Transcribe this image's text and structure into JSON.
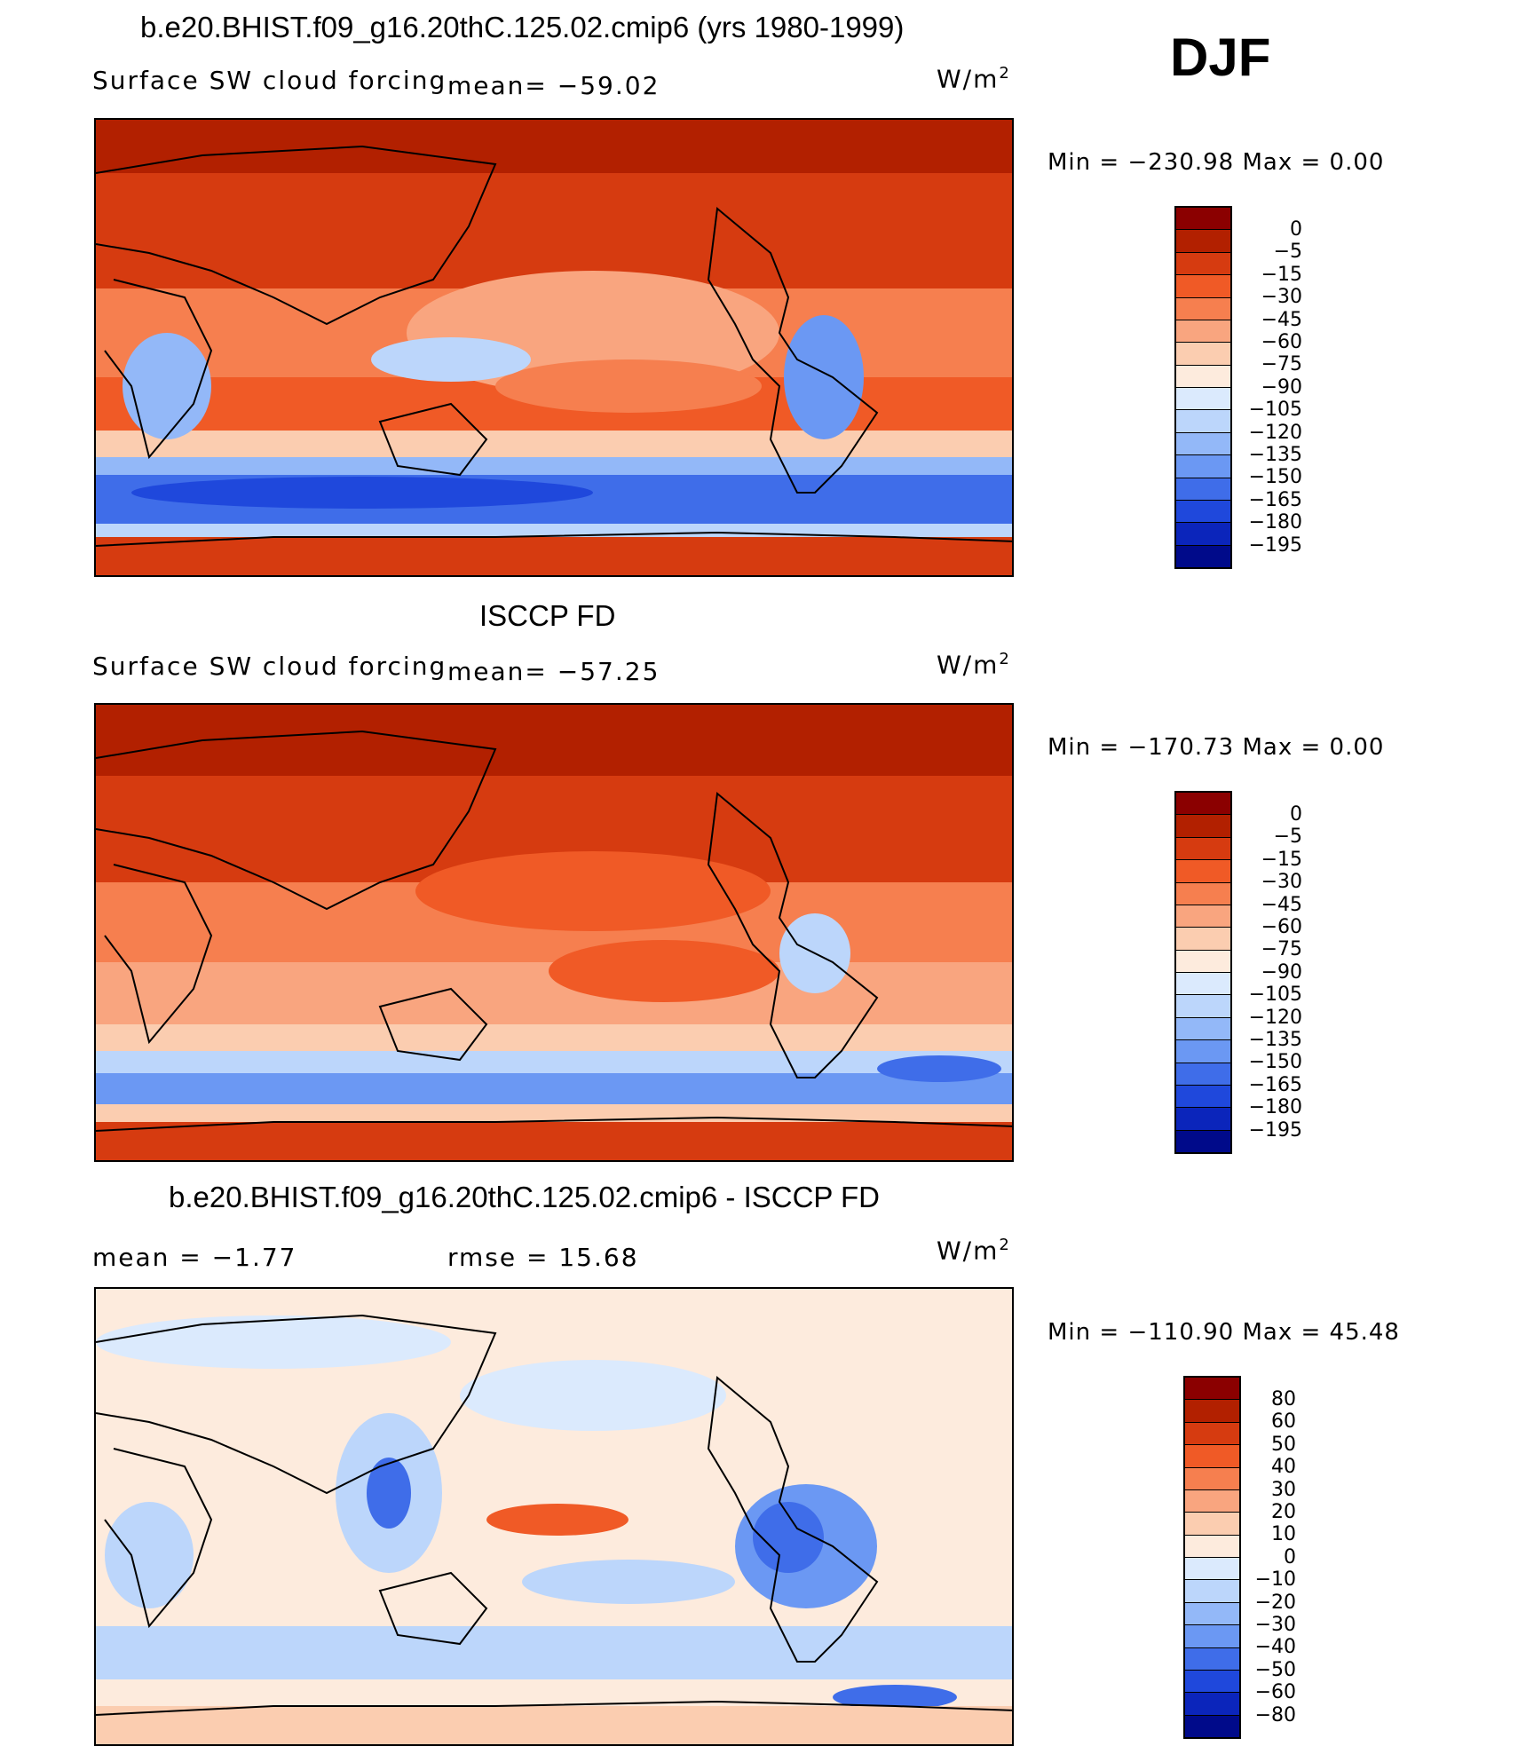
{
  "season": "DJF",
  "panels": [
    {
      "title": "b.e20.BHIST.f09_g16.20thC.125.02.cmip6 (yrs 1980-1999)",
      "left_label": "Surface SW cloud forcing",
      "mean_label": "mean= −59.02",
      "unit": "W/m",
      "unit_sup": "2",
      "min_max": "Min = −230.98 Max =    0.00",
      "colorbar": {
        "colors": [
          "#8b0000",
          "#b22000",
          "#d63b10",
          "#f05a26",
          "#f67f4f",
          "#f9a57f",
          "#fbcdb0",
          "#fdebdd",
          "#dbeafd",
          "#bcd6fb",
          "#93b8f8",
          "#6b98f3",
          "#3f6de9",
          "#1f48dc",
          "#0b25bb",
          "#000a8a"
        ],
        "labels": [
          "0",
          "−5",
          "−15",
          "−30",
          "−45",
          "−60",
          "−75",
          "−90",
          "−105",
          "−120",
          "−135",
          "−150",
          "−165",
          "−180",
          "−195"
        ]
      }
    },
    {
      "title": "ISCCP FD",
      "left_label": "Surface SW cloud forcing",
      "mean_label": "mean= −57.25",
      "unit": "W/m",
      "unit_sup": "2",
      "min_max": "Min = −170.73 Max =    0.00",
      "colorbar": {
        "colors": [
          "#8b0000",
          "#b22000",
          "#d63b10",
          "#f05a26",
          "#f67f4f",
          "#f9a57f",
          "#fbcdb0",
          "#fdebdd",
          "#dbeafd",
          "#bcd6fb",
          "#93b8f8",
          "#6b98f3",
          "#3f6de9",
          "#1f48dc",
          "#0b25bb",
          "#000a8a"
        ],
        "labels": [
          "0",
          "−5",
          "−15",
          "−30",
          "−45",
          "−60",
          "−75",
          "−90",
          "−105",
          "−120",
          "−135",
          "−150",
          "−165",
          "−180",
          "−195"
        ]
      }
    },
    {
      "title": "b.e20.BHIST.f09_g16.20thC.125.02.cmip6 - ISCCP FD",
      "left_label": "mean =   −1.77",
      "mean_label": "rmse =   15.68",
      "unit": "W/m",
      "unit_sup": "2",
      "min_max": "Min = −110.90 Max =   45.48",
      "colorbar": {
        "colors": [
          "#8b0000",
          "#b22000",
          "#d63b10",
          "#f05a26",
          "#f67f4f",
          "#f9a57f",
          "#fbcdb0",
          "#fdebdd",
          "#dbeafd",
          "#bcd6fb",
          "#93b8f8",
          "#6b98f3",
          "#3f6de9",
          "#1f48dc",
          "#0b25bb",
          "#000a8a"
        ],
        "labels": [
          "80",
          "60",
          "50",
          "40",
          "30",
          "20",
          "10",
          "0",
          "−10",
          "−20",
          "−30",
          "−40",
          "−50",
          "−60",
          "−80"
        ]
      }
    }
  ],
  "map_palette": {
    "deep_red": "#b22000",
    "red": "#d63b10",
    "orange": "#f05a26",
    "salmon": "#f67f4f",
    "peach": "#f9a57f",
    "light_peach": "#fbcdb0",
    "cream": "#fdebdd",
    "pale_blue": "#dbeafd",
    "light_blue": "#bcd6fb",
    "blue": "#6b98f3",
    "mid_blue": "#3f6de9",
    "deep_blue": "#1f48dc"
  }
}
